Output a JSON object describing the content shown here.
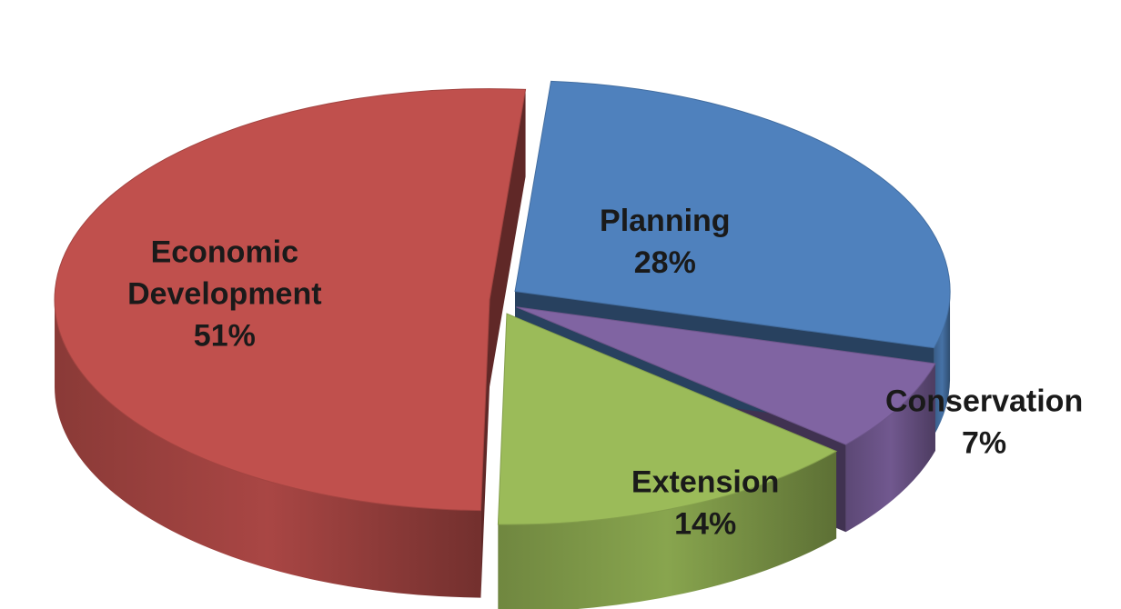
{
  "chart_data": {
    "type": "pie",
    "variant": "3d-exploded",
    "title": "",
    "slices": [
      {
        "label": "Economic Development",
        "value": 51,
        "value_label": "51%",
        "color": "#c0504d"
      },
      {
        "label": "Planning",
        "value": 28,
        "value_label": "28%",
        "color": "#4f81bd"
      },
      {
        "label": "Conservation",
        "value": 7,
        "value_label": "7%",
        "color": "#8064a2"
      },
      {
        "label": "Extension",
        "value": 14,
        "value_label": "14%",
        "color": "#9bbb59"
      }
    ],
    "legend": "none"
  }
}
